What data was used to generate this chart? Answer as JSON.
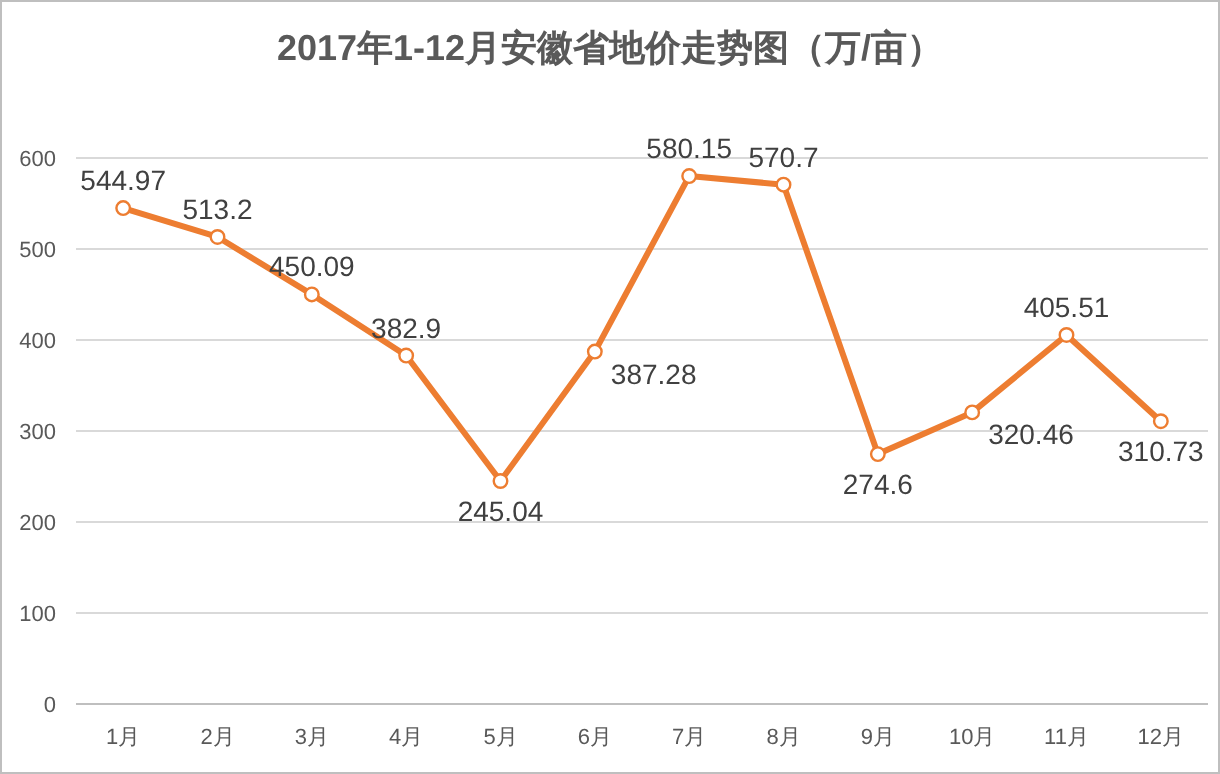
{
  "chart_data": {
    "type": "line",
    "title": "2017年1-12月安徽省地价走势图（万/亩）",
    "categories": [
      "1月",
      "2月",
      "3月",
      "4月",
      "5月",
      "6月",
      "7月",
      "8月",
      "9月",
      "10月",
      "11月",
      "12月"
    ],
    "series": [
      {
        "color": "#ed7d31",
        "values": [
          544.97,
          513.2,
          450.09,
          382.9,
          245.04,
          387.28,
          580.15,
          570.7,
          274.6,
          320.46,
          405.51,
          310.73
        ]
      }
    ],
    "ylim": [
      0,
      600
    ],
    "yticks": [
      0,
      100,
      200,
      300,
      400,
      500,
      600
    ],
    "grid": "y",
    "marker": "circle",
    "data_labels": true
  }
}
